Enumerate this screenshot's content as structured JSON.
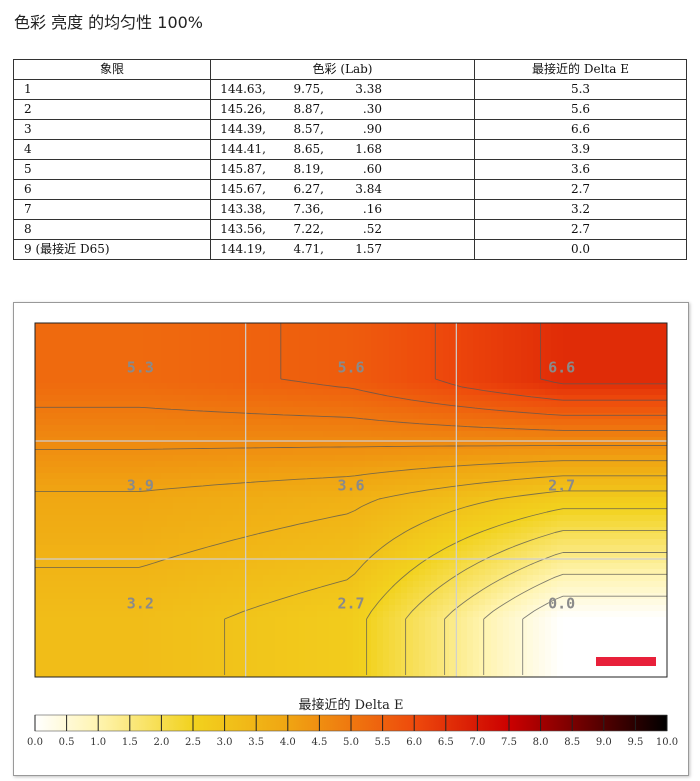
{
  "page": {
    "title": "色彩 亮度 的均匀性 100%"
  },
  "table": {
    "headers": [
      "象限",
      "色彩 (Lab)",
      "最接近的 Delta E"
    ],
    "rows": [
      {
        "quadrant": "1",
        "L": "144.63,",
        "a": "9.75,",
        "b": "3.38",
        "delta_e": "5.3"
      },
      {
        "quadrant": "2",
        "L": "145.26,",
        "a": "8.87,",
        "b": ".30",
        "delta_e": "5.6"
      },
      {
        "quadrant": "3",
        "L": "144.39,",
        "a": "8.57,",
        "b": ".90",
        "delta_e": "6.6"
      },
      {
        "quadrant": "4",
        "L": "144.41,",
        "a": "8.65,",
        "b": "1.68",
        "delta_e": "3.9"
      },
      {
        "quadrant": "5",
        "L": "145.87,",
        "a": "8.19,",
        "b": ".60",
        "delta_e": "3.6"
      },
      {
        "quadrant": "6",
        "L": "145.67,",
        "a": "6.27,",
        "b": "3.84",
        "delta_e": "2.7"
      },
      {
        "quadrant": "7",
        "L": "143.38,",
        "a": "7.36,",
        "b": ".16",
        "delta_e": "3.2"
      },
      {
        "quadrant": "8",
        "L": "143.56,",
        "a": "7.22,",
        "b": ".52",
        "delta_e": "2.7"
      },
      {
        "quadrant": "9 (最接近 D65)",
        "L": "144.19,",
        "a": "4.71,",
        "b": "1.57",
        "delta_e": "0.0"
      }
    ]
  },
  "chart_data": {
    "type": "heatmap",
    "grid": {
      "rows": 3,
      "cols": 3
    },
    "cells": [
      [
        "5.3",
        "5.6",
        "6.6"
      ],
      [
        "3.9",
        "3.6",
        "2.7"
      ],
      [
        "3.2",
        "2.7",
        "0.0"
      ]
    ],
    "values": [
      [
        5.3,
        5.6,
        6.6
      ],
      [
        3.9,
        3.6,
        2.7
      ],
      [
        3.2,
        2.7,
        0.0
      ]
    ],
    "legend": {
      "title": "最接近的 Delta E",
      "ticks": [
        "0.0",
        "0.5",
        "1.0",
        "1.5",
        "2.0",
        "2.5",
        "3.0",
        "3.5",
        "4.0",
        "4.5",
        "5.0",
        "5.5",
        "6.0",
        "6.5",
        "7.0",
        "7.5",
        "8.0",
        "8.5",
        "9.0",
        "9.5",
        "10.0"
      ],
      "range": [
        0,
        10
      ],
      "colors": [
        "#ffffff",
        "#fff4b0",
        "#f2d21e",
        "#f0a512",
        "#ee4a0c",
        "#cc0000",
        "#000000"
      ]
    },
    "marker_color": "#e8203a"
  }
}
